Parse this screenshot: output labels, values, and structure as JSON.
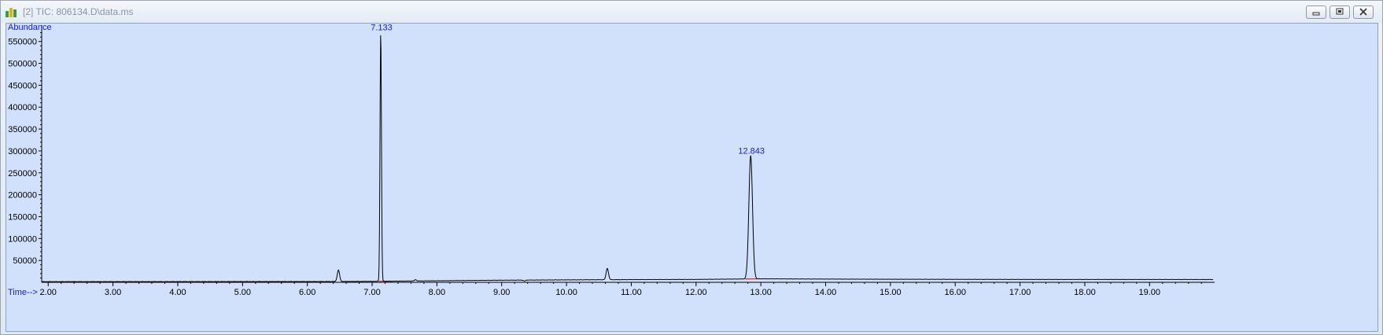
{
  "window": {
    "title": "[2] TIC: 806134.D\\data.ms",
    "controls": [
      "minimize",
      "restore",
      "close"
    ]
  },
  "chart_data": {
    "type": "line",
    "ylabel": "Abundance",
    "xlabel": "Time-->",
    "xlim": [
      1.9,
      19.98
    ],
    "ylim": [
      0,
      580000
    ],
    "x_ticks": [
      "2.00",
      "3.00",
      "4.00",
      "5.00",
      "6.00",
      "7.00",
      "8.00",
      "9.00",
      "10.00",
      "11.00",
      "12.00",
      "13.00",
      "14.00",
      "15.00",
      "16.00",
      "17.00",
      "18.00",
      "19.00"
    ],
    "y_ticks": [
      "50000",
      "100000",
      "150000",
      "200000",
      "250000",
      "300000",
      "350000",
      "400000",
      "450000",
      "500000",
      "550000"
    ],
    "grid": false,
    "colors": {
      "trace": "#000000",
      "labels": "#1a1ad8",
      "baseline_marks": "#e02020",
      "background": "#d1e0fb"
    },
    "peaks": [
      {
        "time": 6.48,
        "abundance": 28000,
        "width": 0.018,
        "label": ""
      },
      {
        "time": 7.133,
        "abundance": 572000,
        "width": 0.011,
        "label": "7.133"
      },
      {
        "time": 7.67,
        "abundance": 6000,
        "width": 0.015,
        "label": ""
      },
      {
        "time": 9.35,
        "abundance": 3000,
        "width": 0.015,
        "label": ""
      },
      {
        "time": 10.63,
        "abundance": 32000,
        "width": 0.018,
        "label": ""
      },
      {
        "time": 12.843,
        "abundance": 290000,
        "width": 0.028,
        "label": "12.843"
      }
    ],
    "baseline": [
      [
        1.9,
        1500
      ],
      [
        6.3,
        1800
      ],
      [
        7.0,
        2200
      ],
      [
        8.0,
        3500
      ],
      [
        9.0,
        4800
      ],
      [
        10.0,
        5600
      ],
      [
        11.0,
        6200
      ],
      [
        12.0,
        6600
      ],
      [
        13.0,
        8000
      ],
      [
        14.0,
        7400
      ],
      [
        15.0,
        7000
      ],
      [
        16.0,
        6800
      ],
      [
        17.0,
        6600
      ],
      [
        18.0,
        6500
      ],
      [
        19.0,
        6500
      ],
      [
        19.98,
        6400
      ]
    ],
    "integration_marks": [
      {
        "start": 7.1,
        "end": 7.3
      },
      {
        "start": 12.76,
        "end": 12.98
      }
    ]
  }
}
